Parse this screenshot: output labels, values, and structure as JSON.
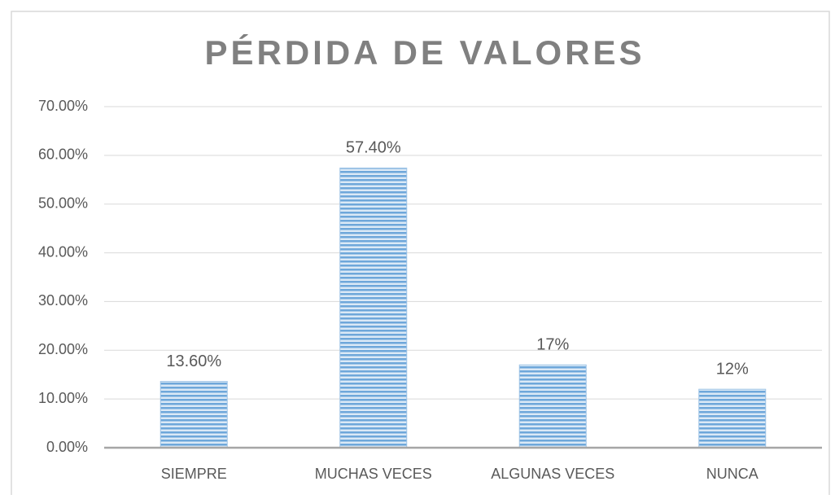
{
  "chart_data": {
    "type": "bar",
    "title": "PÉRDIDA DE VALORES",
    "categories": [
      "SIEMPRE",
      "MUCHAS VECES",
      "ALGUNAS VECES",
      "NUNCA"
    ],
    "values": [
      13.6,
      57.4,
      17,
      12
    ],
    "value_labels": [
      "13.60%",
      "57.40%",
      "17%",
      "12%"
    ],
    "color": "#5b9bd5",
    "ylim": [
      0,
      70
    ],
    "yticks": [
      {
        "value": 0,
        "label": "0.00%"
      },
      {
        "value": 10,
        "label": "10.00%"
      },
      {
        "value": 20,
        "label": "20.00%"
      },
      {
        "value": 30,
        "label": "30.00%"
      },
      {
        "value": 40,
        "label": "40.00%"
      },
      {
        "value": 50,
        "label": "50.00%"
      },
      {
        "value": 60,
        "label": "60.00%"
      },
      {
        "value": 70,
        "label": "70.00%"
      }
    ],
    "grid": true
  }
}
